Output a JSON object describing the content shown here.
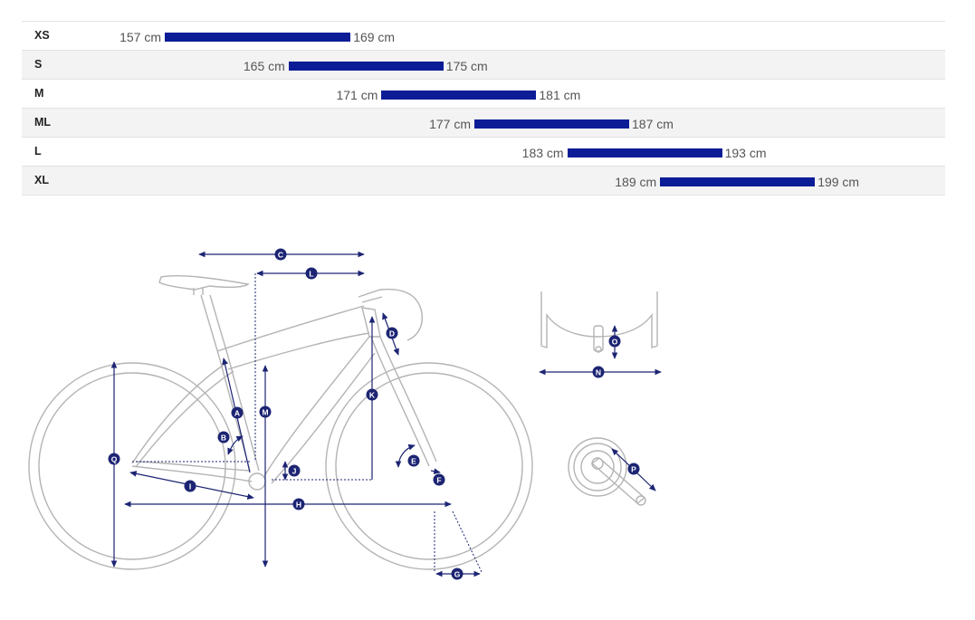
{
  "size_chart": {
    "rows": [
      {
        "size": "XS",
        "min_label": "157 cm",
        "max_label": "169 cm",
        "min": 157,
        "max": 169
      },
      {
        "size": "S",
        "min_label": "165 cm",
        "max_label": "175 cm",
        "min": 165,
        "max": 175
      },
      {
        "size": "M",
        "min_label": "171 cm",
        "max_label": "181 cm",
        "min": 171,
        "max": 181
      },
      {
        "size": "ML",
        "min_label": "177 cm",
        "max_label": "187 cm",
        "min": 177,
        "max": 187
      },
      {
        "size": "L",
        "min_label": "183 cm",
        "max_label": "193 cm",
        "min": 183,
        "max": 193
      },
      {
        "size": "XL",
        "min_label": "189 cm",
        "max_label": "199 cm",
        "min": 189,
        "max": 199
      }
    ],
    "bar_color": "#0b1c96"
  },
  "geometry_labels": {
    "A": "A",
    "B": "B",
    "C": "C",
    "D": "D",
    "E": "E",
    "F": "F",
    "G": "G",
    "H": "H",
    "I": "I",
    "J": "J",
    "K": "K",
    "L": "L",
    "M": "M",
    "N": "N",
    "O": "O",
    "P": "P",
    "Q": "Q"
  },
  "colors": {
    "diagram_line": "#b4b4b4",
    "dimension": "#1c2473"
  }
}
